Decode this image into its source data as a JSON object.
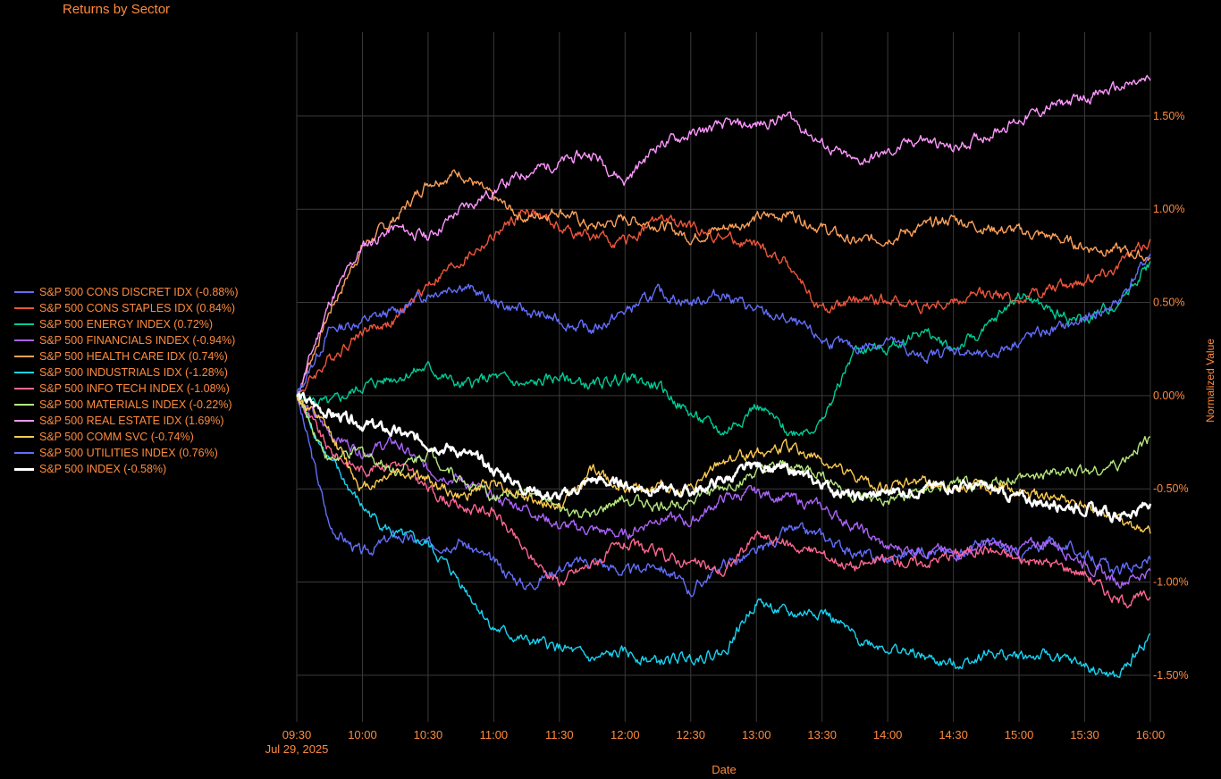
{
  "chart_data": {
    "type": "line",
    "title": "Returns by Sector",
    "xlabel": "Date",
    "ylabel": "Normalized Value",
    "x_ticks": [
      "09:30",
      "10:00",
      "10:30",
      "11:00",
      "11:30",
      "12:00",
      "12:30",
      "13:00",
      "13:30",
      "14:00",
      "14:30",
      "15:00",
      "15:30",
      "16:00"
    ],
    "x_date_label": "Jul 29, 2025",
    "y_ticks": [
      "1.50%",
      "1.00%",
      "0.50%",
      "0.00%",
      "-0.50%",
      "-1.00%",
      "-1.50%"
    ],
    "y_tick_values": [
      1.5,
      1.0,
      0.5,
      0.0,
      -0.5,
      -1.0,
      -1.5
    ],
    "ylim": [
      -1.75,
      1.95
    ],
    "x_minutes": [
      0,
      15,
      30,
      45,
      60,
      75,
      90,
      105,
      120,
      135,
      150,
      165,
      180,
      195,
      210,
      225,
      240,
      255,
      270,
      285,
      300,
      315,
      330,
      345,
      360,
      375,
      390
    ],
    "legend_position": "left",
    "grid": true,
    "series": [
      {
        "name": "S&P 500 CONS DISCRET IDX (-0.88%)",
        "color": "#636efa",
        "values": [
          0.0,
          -0.7,
          -0.85,
          -0.75,
          -0.8,
          -0.78,
          -0.9,
          -1.02,
          -0.92,
          -0.88,
          -0.95,
          -0.9,
          -1.05,
          -0.9,
          -0.85,
          -0.72,
          -0.75,
          -0.85,
          -0.88,
          -0.82,
          -0.85,
          -0.78,
          -0.86,
          -0.78,
          -0.85,
          -0.95,
          -0.88
        ]
      },
      {
        "name": "S&P 500 CONS STAPLES IDX (0.84%)",
        "color": "#ef553b",
        "values": [
          0.0,
          0.2,
          0.35,
          0.4,
          0.6,
          0.72,
          0.85,
          1.0,
          0.9,
          0.85,
          0.82,
          0.95,
          0.9,
          0.85,
          0.8,
          0.7,
          0.45,
          0.5,
          0.52,
          0.48,
          0.5,
          0.55,
          0.52,
          0.58,
          0.62,
          0.7,
          0.84
        ]
      },
      {
        "name": "S&P 500 ENERGY INDEX (0.72%)",
        "color": "#00cc96",
        "values": [
          0.0,
          -0.05,
          0.05,
          0.1,
          0.15,
          0.05,
          0.1,
          0.05,
          0.1,
          0.05,
          0.1,
          0.05,
          -0.1,
          -0.2,
          -0.05,
          -0.2,
          -0.15,
          0.25,
          0.25,
          0.35,
          0.25,
          0.35,
          0.55,
          0.45,
          0.4,
          0.5,
          0.72
        ]
      },
      {
        "name": "S&P 500 FINANCIALS INDEX (-0.94%)",
        "color": "#ab63fa",
        "values": [
          0.0,
          -0.2,
          -0.3,
          -0.25,
          -0.4,
          -0.45,
          -0.55,
          -0.6,
          -0.7,
          -0.72,
          -0.75,
          -0.65,
          -0.68,
          -0.55,
          -0.52,
          -0.55,
          -0.6,
          -0.7,
          -0.82,
          -0.82,
          -0.85,
          -0.8,
          -0.82,
          -0.78,
          -0.9,
          -1.0,
          -0.94
        ]
      },
      {
        "name": "S&P 500 HEALTH CARE IDX (0.74%)",
        "color": "#ffa15a",
        "values": [
          0.0,
          0.45,
          0.8,
          0.95,
          1.15,
          1.2,
          1.05,
          0.95,
          1.0,
          0.9,
          0.95,
          0.92,
          0.85,
          0.9,
          0.95,
          0.98,
          0.9,
          0.82,
          0.85,
          0.9,
          0.95,
          0.9,
          0.88,
          0.85,
          0.8,
          0.78,
          0.74
        ]
      },
      {
        "name": "S&P 500 INDUSTRIALS IDX (-1.28%)",
        "color": "#19d3f3",
        "values": [
          0.0,
          -0.35,
          -0.6,
          -0.75,
          -0.8,
          -1.0,
          -1.25,
          -1.32,
          -1.35,
          -1.42,
          -1.38,
          -1.43,
          -1.4,
          -1.38,
          -1.1,
          -1.18,
          -1.15,
          -1.3,
          -1.35,
          -1.4,
          -1.45,
          -1.38,
          -1.4,
          -1.4,
          -1.45,
          -1.52,
          -1.28
        ]
      },
      {
        "name": "S&P 500 INFO TECH INDEX (-1.08%)",
        "color": "#ff6692",
        "values": [
          0.0,
          -0.3,
          -0.4,
          -0.35,
          -0.5,
          -0.6,
          -0.62,
          -0.85,
          -1.0,
          -0.9,
          -0.8,
          -0.85,
          -0.9,
          -0.95,
          -0.75,
          -0.8,
          -0.85,
          -0.92,
          -0.88,
          -0.9,
          -0.85,
          -0.82,
          -0.88,
          -0.9,
          -0.95,
          -1.1,
          -1.08
        ]
      },
      {
        "name": "S&P 500 MATERIALS INDEX (-0.22%)",
        "color": "#b6e880",
        "values": [
          0.0,
          -0.35,
          -0.3,
          -0.4,
          -0.3,
          -0.45,
          -0.55,
          -0.5,
          -0.62,
          -0.65,
          -0.55,
          -0.6,
          -0.55,
          -0.5,
          -0.42,
          -0.38,
          -0.42,
          -0.55,
          -0.58,
          -0.52,
          -0.48,
          -0.48,
          -0.45,
          -0.42,
          -0.4,
          -0.38,
          -0.22
        ]
      },
      {
        "name": "S&P 500 REAL ESTATE IDX (1.69%)",
        "color": "#ff97ff",
        "values": [
          0.0,
          0.5,
          0.8,
          0.9,
          0.85,
          1.0,
          1.1,
          1.2,
          1.25,
          1.3,
          1.15,
          1.35,
          1.4,
          1.45,
          1.45,
          1.5,
          1.35,
          1.25,
          1.3,
          1.38,
          1.32,
          1.4,
          1.48,
          1.55,
          1.6,
          1.65,
          1.69
        ]
      },
      {
        "name": "S&P 500 COMM SVC (-0.74%)",
        "color": "#fecb52",
        "values": [
          0.0,
          -0.2,
          -0.5,
          -0.4,
          -0.45,
          -0.55,
          -0.45,
          -0.55,
          -0.6,
          -0.4,
          -0.5,
          -0.48,
          -0.52,
          -0.35,
          -0.3,
          -0.28,
          -0.35,
          -0.45,
          -0.5,
          -0.45,
          -0.5,
          -0.48,
          -0.52,
          -0.55,
          -0.6,
          -0.68,
          -0.74
        ]
      },
      {
        "name": "S&P 500 UTILITIES INDEX (0.76%)",
        "color": "#636efa",
        "values": [
          0.0,
          0.35,
          0.4,
          0.45,
          0.55,
          0.6,
          0.5,
          0.45,
          0.4,
          0.35,
          0.45,
          0.55,
          0.5,
          0.55,
          0.45,
          0.4,
          0.3,
          0.25,
          0.3,
          0.2,
          0.25,
          0.2,
          0.3,
          0.35,
          0.4,
          0.5,
          0.76
        ]
      },
      {
        "name": "S&P 500 INDEX (-0.58%)",
        "color": "#ffffff",
        "bold": true,
        "values": [
          0.0,
          -0.1,
          -0.15,
          -0.2,
          -0.25,
          -0.3,
          -0.4,
          -0.5,
          -0.55,
          -0.45,
          -0.48,
          -0.5,
          -0.52,
          -0.45,
          -0.38,
          -0.4,
          -0.48,
          -0.55,
          -0.52,
          -0.5,
          -0.48,
          -0.5,
          -0.55,
          -0.58,
          -0.6,
          -0.65,
          -0.58
        ]
      }
    ]
  }
}
